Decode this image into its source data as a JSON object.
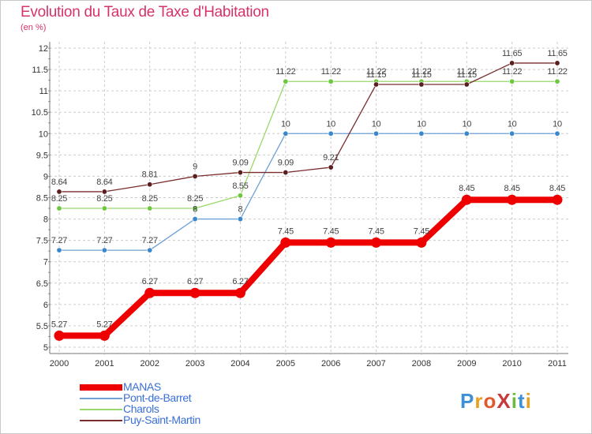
{
  "title": "Evolution du Taux de Taxe d'Habitation",
  "unit_label": "(en %)",
  "logo": {
    "text": "ProXiti",
    "letters": [
      {
        "ch": "P",
        "color": "#3d8fd6"
      },
      {
        "ch": "r",
        "color": "#e8a11f"
      },
      {
        "ch": "o",
        "color": "#e05a2b"
      },
      {
        "ch": "X",
        "color": "#c83a3a"
      },
      {
        "ch": "i",
        "color": "#6cbb3c"
      },
      {
        "ch": "t",
        "color": "#3d8fd6"
      },
      {
        "ch": "i",
        "color": "#e8a11f"
      }
    ]
  },
  "chart_data": {
    "type": "line",
    "title": "Evolution du Taux de Taxe d'Habitation",
    "ylabel": "(en %)",
    "xlabel": "",
    "x": [
      "2000",
      "2001",
      "2002",
      "2003",
      "2004",
      "2005",
      "2006",
      "2007",
      "2008",
      "2009",
      "2010",
      "2011"
    ],
    "ylim": [
      5,
      12
    ],
    "yticks": [
      "5",
      "5.5",
      "6",
      "6.5",
      "7",
      "7.5",
      "8",
      "8.5",
      "9",
      "9.5",
      "10",
      "10.5",
      "11",
      "11.5",
      "12"
    ],
    "grid": true,
    "legend_position": "bottom-left",
    "series": [
      {
        "name": "MANAS",
        "color": "#ee0000",
        "emphasis": true,
        "values": [
          5.27,
          5.27,
          6.27,
          6.27,
          6.27,
          7.45,
          7.45,
          7.45,
          7.45,
          8.45,
          8.45,
          8.45
        ],
        "labels": [
          "5.27",
          "5.27",
          "6.27",
          "6.27",
          "6.27",
          "7.45",
          "7.45",
          "7.45",
          "7.45",
          "8.45",
          "8.45",
          "8.45"
        ]
      },
      {
        "name": "Pont-de-Barret",
        "color": "#6fa0d6",
        "marker": "#3a87cc",
        "emphasis": false,
        "values": [
          7.27,
          7.27,
          7.27,
          8,
          8,
          10,
          10,
          10,
          10,
          10,
          10,
          10
        ],
        "labels": [
          "7.27",
          "7.27",
          "7.27",
          "8",
          "8",
          "10",
          "10",
          "10",
          "10",
          "10",
          "10",
          "10"
        ]
      },
      {
        "name": "Charols",
        "color": "#9ad86b",
        "marker": "#6cc83c",
        "emphasis": false,
        "values": [
          8.25,
          8.25,
          8.25,
          8.25,
          8.55,
          11.22,
          11.22,
          11.22,
          11.22,
          11.22,
          11.22,
          11.22
        ],
        "labels": [
          "8.25",
          "8.25",
          "8.25",
          "8.25",
          "8.55",
          "11.22",
          "11.22",
          "11.22",
          "11.22",
          "11.22",
          "11.22",
          "11.22"
        ]
      },
      {
        "name": "Puy-Saint-Martin",
        "color": "#7a2d2d",
        "marker": "#5a1e1e",
        "emphasis": false,
        "values": [
          8.64,
          8.64,
          8.81,
          9,
          9.09,
          9.09,
          9.21,
          11.15,
          11.15,
          11.15,
          11.65,
          11.65
        ],
        "labels": [
          "8.64",
          "8.64",
          "8.81",
          "9",
          "9.09",
          "9.09",
          "9.21",
          "11.15",
          "11.15",
          "11.15",
          "11.65",
          "11.65"
        ]
      }
    ]
  }
}
